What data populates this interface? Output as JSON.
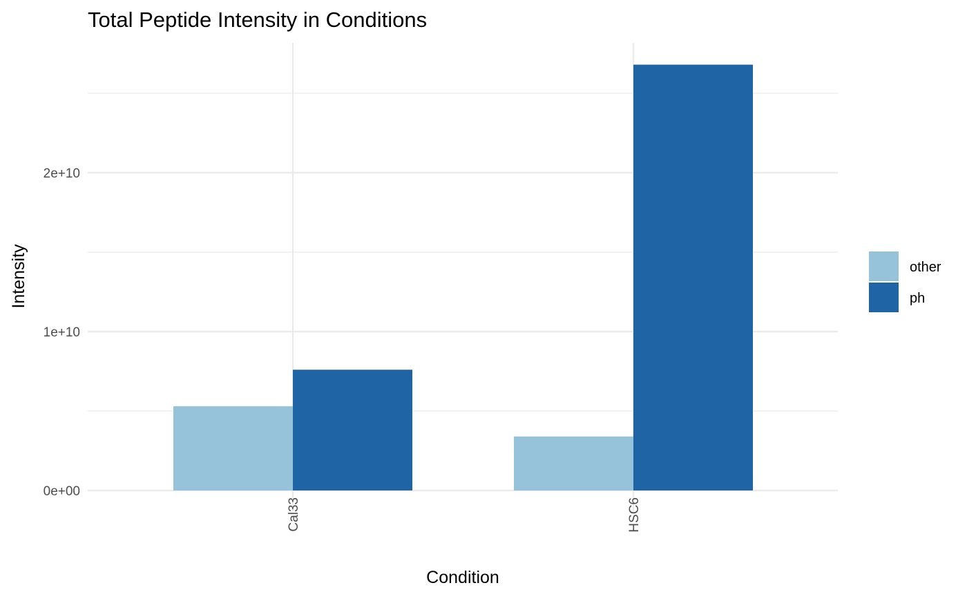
{
  "chart_data": {
    "type": "bar",
    "title": "Total Peptide Intensity in Conditions",
    "xlabel": "Condition",
    "ylabel": "Intensity",
    "categories": [
      "Cal33",
      "HSC6"
    ],
    "series": [
      {
        "name": "other",
        "color": "#97C3DA",
        "values": [
          5300000000,
          3400000000
        ]
      },
      {
        "name": "ph",
        "color": "#1F65A6",
        "values": [
          7600000000,
          26800000000
        ]
      }
    ],
    "ylim": [
      0,
      28000000000
    ],
    "yticks": [
      {
        "value": 0,
        "label": "0e+00"
      },
      {
        "value": 10000000000,
        "label": "1e+10"
      },
      {
        "value": 20000000000,
        "label": "2e+10"
      }
    ],
    "minor_gridlines": [
      5000000000,
      15000000000,
      25000000000
    ],
    "grid": true,
    "legend_position": "right",
    "x_tick_rotation": "vertical"
  }
}
